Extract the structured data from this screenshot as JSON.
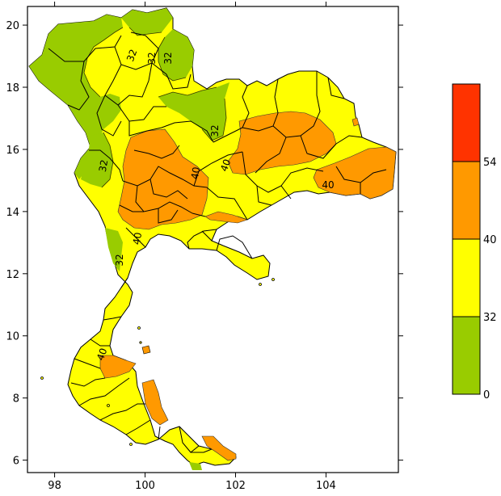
{
  "map": {
    "x_axis": {
      "min": 97.4,
      "max": 105.6,
      "ticks": [
        98,
        100,
        102,
        104
      ]
    },
    "y_axis": {
      "min": 5.6,
      "max": 20.6,
      "ticks": [
        6,
        8,
        10,
        12,
        14,
        16,
        18,
        20
      ]
    },
    "contour_labels": [
      "32",
      "32",
      "32",
      "32",
      "32",
      "32",
      "40",
      "40",
      "40",
      "40",
      "40"
    ],
    "colors": {
      "green": "#99cc00",
      "yellow": "#ffff00",
      "orange": "#ff9900",
      "red": "#ff3300",
      "border": "#000000"
    }
  },
  "legend": {
    "bins": [
      {
        "from": 0,
        "to": 32,
        "color": "#99cc00"
      },
      {
        "from": 32,
        "to": 40,
        "color": "#ffff00"
      },
      {
        "from": 40,
        "to": 54,
        "color": "#ff9900"
      },
      {
        "from": 54,
        "to": null,
        "color": "#ff3300"
      }
    ],
    "labels": [
      "0",
      "32",
      "40",
      "54"
    ]
  }
}
